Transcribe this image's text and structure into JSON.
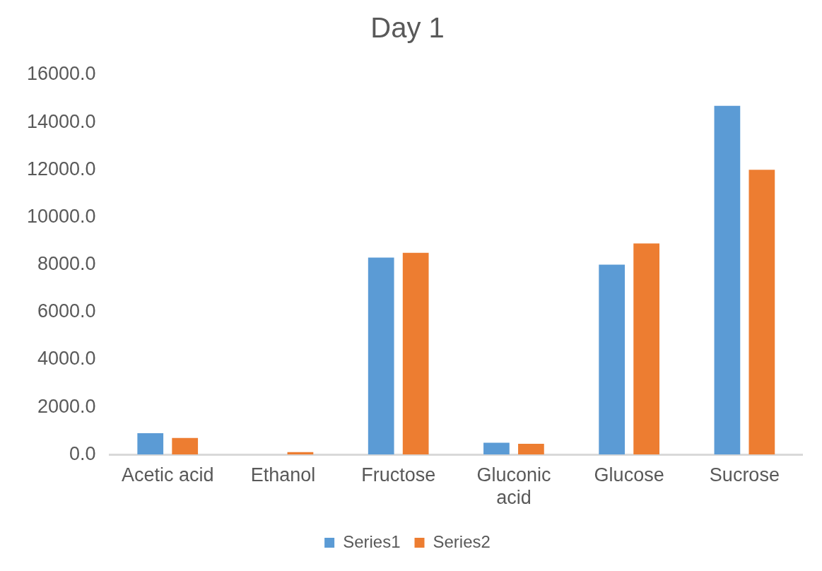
{
  "chart_data": {
    "type": "bar",
    "title": "Day 1",
    "categories": [
      "Acetic acid",
      "Ethanol",
      "Fructose",
      "Gluconic acid",
      "Glucose",
      "Sucrose"
    ],
    "series": [
      {
        "name": "Series1",
        "color": "#5b9bd5",
        "values": [
          900,
          0,
          8300,
          500,
          8000,
          14700
        ]
      },
      {
        "name": "Series2",
        "color": "#ed7d31",
        "values": [
          700,
          100,
          8500,
          450,
          8900,
          12000
        ]
      }
    ],
    "ylim": [
      0,
      16000
    ],
    "yticks": [
      {
        "value": 0,
        "label": "0.0"
      },
      {
        "value": 2000,
        "label": "2000.0"
      },
      {
        "value": 4000,
        "label": "4000.0"
      },
      {
        "value": 6000,
        "label": "6000.0"
      },
      {
        "value": 8000,
        "label": "8000.0"
      },
      {
        "value": 10000,
        "label": "10000.0"
      },
      {
        "value": 12000,
        "label": "12000.0"
      },
      {
        "value": 14000,
        "label": "14000.0"
      },
      {
        "value": 16000,
        "label": "16000.0"
      }
    ],
    "grid": false,
    "legend": "bottom"
  }
}
